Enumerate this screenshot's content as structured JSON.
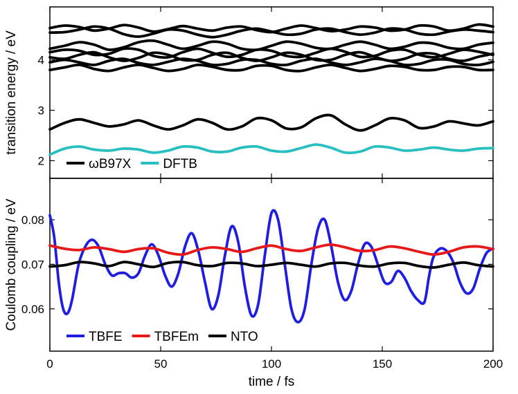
{
  "chart_data": [
    {
      "type": "line",
      "xlabel": "",
      "ylabel": "transition energy / eV",
      "xlim": [
        0,
        200
      ],
      "ylim": [
        1.65,
        5.05
      ],
      "yticks": [
        2,
        3,
        4
      ],
      "xticks": [
        0,
        50,
        100,
        150,
        200
      ],
      "show_xticklabels": false,
      "grid": false,
      "legend": {
        "placement": "bottom-left",
        "entries": [
          "ωB97X",
          "DFTB"
        ]
      },
      "series": [
        {
          "name": "ωB97X",
          "color": "#000000",
          "values": [
            4.63,
            4.68,
            4.65,
            4.58,
            4.62,
            4.69,
            4.64,
            4.56,
            4.61,
            4.67,
            4.62,
            4.58,
            4.64,
            4.66,
            4.59,
            4.55,
            4.62,
            4.68,
            4.63,
            4.57,
            4.6,
            4.66,
            4.64,
            4.58,
            4.6,
            4.68,
            4.66,
            4.58,
            4.62,
            4.7,
            4.66
          ]
        },
        {
          "name": "ωB97X",
          "color": "#000000",
          "values": [
            4.54,
            4.55,
            4.6,
            4.66,
            4.62,
            4.51,
            4.46,
            4.52,
            4.6,
            4.58,
            4.5,
            4.45,
            4.5,
            4.58,
            4.62,
            4.56,
            4.5,
            4.52,
            4.6,
            4.62,
            4.55,
            4.5,
            4.54,
            4.62,
            4.6,
            4.52,
            4.5,
            4.56,
            4.6,
            4.58,
            4.55
          ]
        },
        {
          "name": "ωB97X",
          "color": "#000000",
          "values": [
            4.22,
            4.28,
            4.35,
            4.3,
            4.2,
            4.25,
            4.35,
            4.38,
            4.3,
            4.22,
            4.28,
            4.36,
            4.32,
            4.22,
            4.2,
            4.28,
            4.36,
            4.32,
            4.24,
            4.22,
            4.3,
            4.36,
            4.3,
            4.22,
            4.26,
            4.34,
            4.32,
            4.24,
            4.22,
            4.3,
            4.34
          ]
        },
        {
          "name": "ωB97X",
          "color": "#000000",
          "values": [
            4.15,
            4.2,
            4.18,
            4.1,
            4.12,
            4.22,
            4.2,
            4.08,
            4.05,
            4.15,
            4.22,
            4.14,
            4.06,
            4.1,
            4.2,
            4.18,
            4.08,
            4.06,
            4.14,
            4.22,
            4.16,
            4.06,
            4.08,
            4.18,
            4.2,
            4.1,
            4.05,
            4.12,
            4.2,
            4.16,
            4.1
          ]
        },
        {
          "name": "ωB97X",
          "color": "#000000",
          "values": [
            4.05,
            4.02,
            4.1,
            4.15,
            4.05,
            3.98,
            4.04,
            4.14,
            4.1,
            4.0,
            4.0,
            4.1,
            4.14,
            4.04,
            3.98,
            4.05,
            4.14,
            4.1,
            4.0,
            4.0,
            4.1,
            4.15,
            4.06,
            3.98,
            4.02,
            4.12,
            4.12,
            4.02,
            3.98,
            4.06,
            4.12
          ]
        },
        {
          "name": "ωB97X",
          "color": "#000000",
          "values": [
            3.95,
            4.0,
            3.95,
            3.9,
            3.98,
            4.02,
            3.94,
            3.9,
            3.96,
            4.02,
            3.98,
            3.9,
            3.92,
            4.0,
            4.0,
            3.92,
            3.9,
            3.98,
            4.02,
            3.95,
            3.9,
            3.95,
            4.02,
            3.98,
            3.9,
            3.92,
            4.0,
            4.0,
            3.92,
            3.9,
            3.96
          ]
        },
        {
          "name": "ωB97X",
          "color": "#000000",
          "values": [
            3.8,
            3.85,
            3.9,
            3.82,
            3.78,
            3.85,
            3.9,
            3.84,
            3.78,
            3.82,
            3.9,
            3.86,
            3.8,
            3.8,
            3.88,
            3.88,
            3.8,
            3.78,
            3.85,
            3.9,
            3.84,
            3.78,
            3.82,
            3.88,
            3.86,
            3.8,
            3.8,
            3.86,
            3.86,
            3.8,
            3.8
          ]
        },
        {
          "name": "ωB97X",
          "color": "#000000",
          "values": [
            2.62,
            2.75,
            2.82,
            2.75,
            2.68,
            2.72,
            2.8,
            2.7,
            2.62,
            2.7,
            2.82,
            2.75,
            2.62,
            2.68,
            2.84,
            2.8,
            2.64,
            2.66,
            2.84,
            2.9,
            2.72,
            2.6,
            2.7,
            2.84,
            2.8,
            2.65,
            2.68,
            2.78,
            2.74,
            2.7,
            2.78
          ]
        },
        {
          "name": "DFTB",
          "color": "#27bfc0",
          "values": [
            2.12,
            2.24,
            2.28,
            2.22,
            2.2,
            2.24,
            2.22,
            2.16,
            2.2,
            2.28,
            2.26,
            2.18,
            2.18,
            2.26,
            2.28,
            2.2,
            2.18,
            2.25,
            2.32,
            2.26,
            2.16,
            2.18,
            2.28,
            2.26,
            2.2,
            2.22,
            2.26,
            2.22,
            2.2,
            2.24,
            2.25
          ]
        }
      ]
    },
    {
      "type": "line",
      "xlabel": "time / fs",
      "ylabel": "Coulomb coupling / eV",
      "xlim": [
        0,
        200
      ],
      "ylim": [
        0.0505,
        0.0893
      ],
      "yticks": [
        0.06,
        0.07,
        0.08
      ],
      "ytick_labels": [
        "0.06",
        "0.07",
        "0.08"
      ],
      "xticks": [
        0,
        50,
        100,
        150,
        200
      ],
      "xtick_labels": [
        "0",
        "50",
        "100",
        "150",
        "200"
      ],
      "grid": false,
      "legend": {
        "placement": "bottom-left",
        "entries": [
          "TBFE",
          "TBFEm",
          "NTO"
        ]
      },
      "series": [
        {
          "name": "TBFE",
          "color": "#1f1ee0",
          "x": [
            0,
            2,
            4,
            6,
            8,
            10,
            13,
            16,
            19,
            22,
            25,
            28,
            31,
            34,
            37,
            40,
            43,
            46,
            49,
            52,
            55,
            58,
            61,
            64,
            67,
            70,
            73,
            76,
            79,
            82,
            85,
            88,
            91,
            94,
            97,
            100,
            103,
            106,
            109,
            112,
            115,
            118,
            121,
            124,
            127,
            130,
            133,
            136,
            139,
            142,
            145,
            148,
            151,
            154,
            157,
            160,
            163,
            166,
            169,
            171,
            173,
            176,
            179,
            182,
            185,
            188,
            191,
            194,
            197,
            200
          ],
          "values": [
            0.081,
            0.076,
            0.066,
            0.06,
            0.059,
            0.062,
            0.07,
            0.074,
            0.0755,
            0.074,
            0.07,
            0.0675,
            0.068,
            0.068,
            0.067,
            0.068,
            0.072,
            0.0745,
            0.072,
            0.0675,
            0.065,
            0.068,
            0.074,
            0.077,
            0.073,
            0.066,
            0.06,
            0.063,
            0.072,
            0.0785,
            0.075,
            0.065,
            0.0585,
            0.061,
            0.072,
            0.0815,
            0.08,
            0.07,
            0.06,
            0.057,
            0.06,
            0.07,
            0.078,
            0.08,
            0.074,
            0.066,
            0.062,
            0.064,
            0.07,
            0.0745,
            0.074,
            0.07,
            0.066,
            0.066,
            0.0685,
            0.067,
            0.064,
            0.062,
            0.0615,
            0.067,
            0.0715,
            0.0735,
            0.073,
            0.0705,
            0.066,
            0.0635,
            0.0645,
            0.069,
            0.0725,
            0.0735
          ]
        },
        {
          "name": "TBFEm",
          "color": "#e81818",
          "values": [
            0.0742,
            0.0735,
            0.0732,
            0.0738,
            0.0734,
            0.0728,
            0.0734,
            0.0736,
            0.0726,
            0.0722,
            0.0732,
            0.0738,
            0.0734,
            0.0728,
            0.0736,
            0.0742,
            0.0734,
            0.073,
            0.0738,
            0.0744,
            0.0738,
            0.073,
            0.0732,
            0.074,
            0.0736,
            0.0728,
            0.0722,
            0.0728,
            0.0738,
            0.074,
            0.0734
          ]
        },
        {
          "name": "NTO",
          "color": "#000000",
          "values": [
            0.0695,
            0.0698,
            0.0705,
            0.0702,
            0.0696,
            0.0705,
            0.07,
            0.0694,
            0.0703,
            0.0705,
            0.0698,
            0.0696,
            0.0703,
            0.0702,
            0.0696,
            0.0699,
            0.0703,
            0.0699,
            0.0695,
            0.0702,
            0.0703,
            0.0697,
            0.0695,
            0.0702,
            0.0703,
            0.0696,
            0.0693,
            0.0699,
            0.0704,
            0.0698,
            0.0695
          ]
        }
      ]
    }
  ]
}
